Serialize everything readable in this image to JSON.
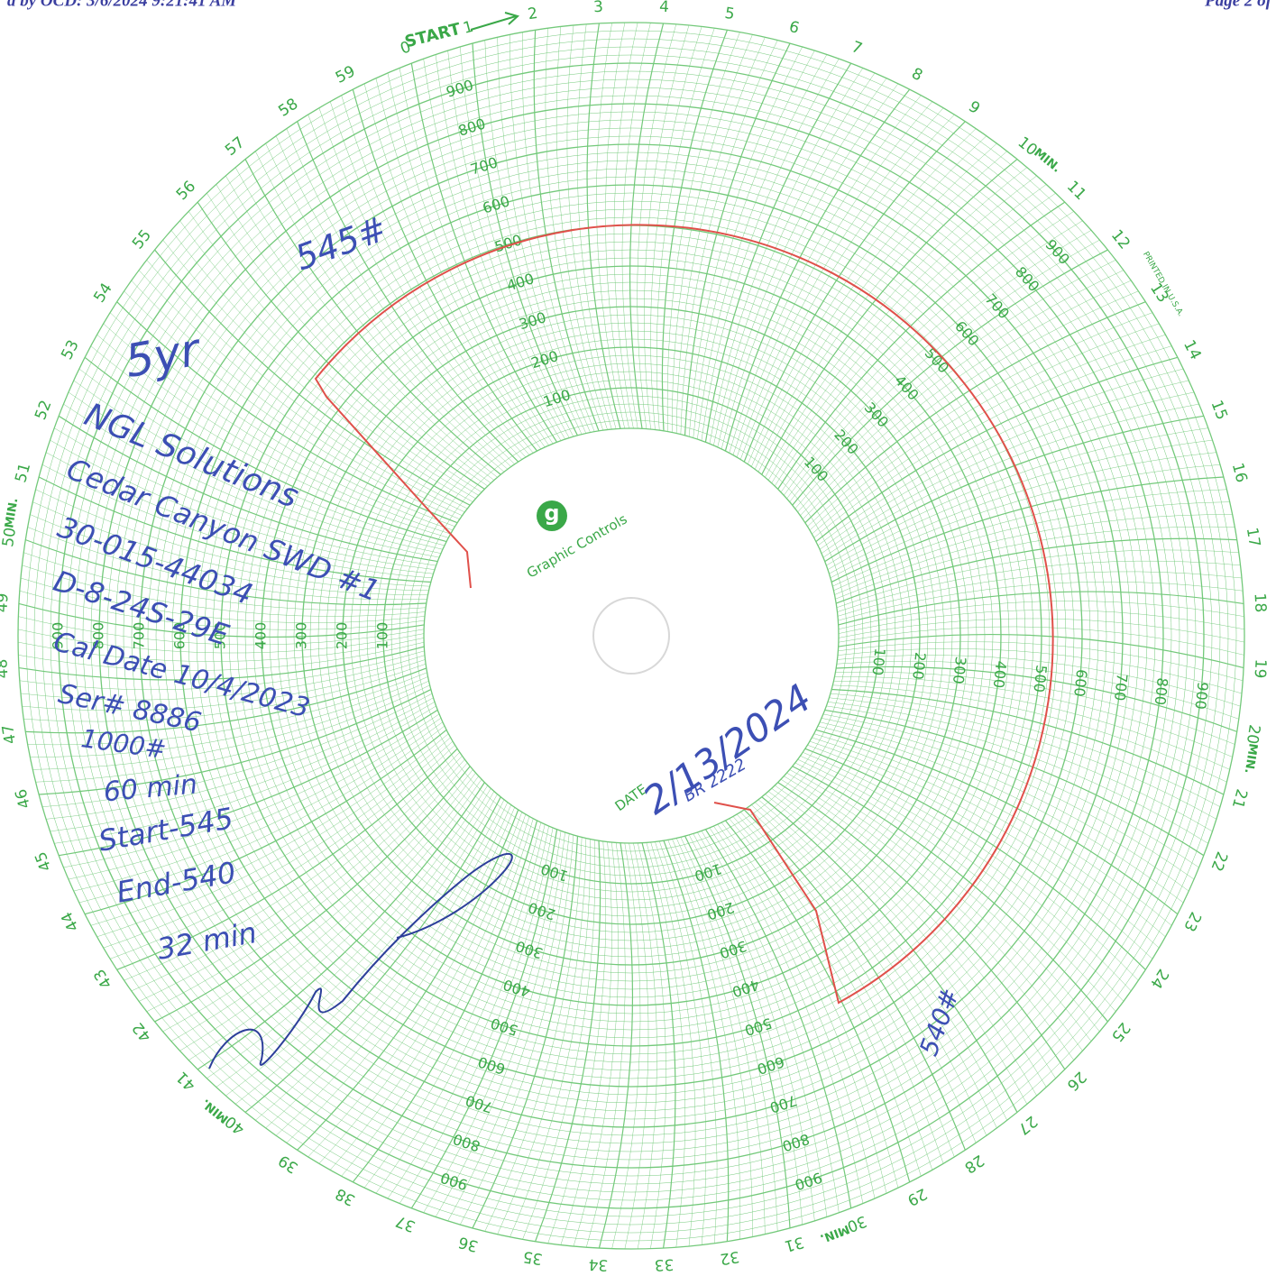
{
  "header": {
    "left": "d by OCD: 3/6/2024 9:21:41 AM",
    "right": "Page 2 of"
  },
  "dial": {
    "start": "START",
    "minutes": [
      0,
      1,
      2,
      3,
      4,
      5,
      6,
      7,
      8,
      9,
      10,
      11,
      12,
      13,
      14,
      15,
      16,
      17,
      18,
      19,
      20,
      21,
      22,
      23,
      24,
      25,
      26,
      27,
      28,
      29,
      30,
      31,
      32,
      33,
      34,
      35,
      36,
      37,
      38,
      39,
      40,
      41,
      42,
      43,
      44,
      45,
      46,
      47,
      48,
      49,
      50,
      51,
      52,
      53,
      54,
      55,
      56,
      57,
      58,
      59
    ],
    "min_unit": "MIN.",
    "pressure_labels": [
      100,
      200,
      300,
      400,
      500,
      600,
      700,
      800,
      900
    ],
    "date_label": "DATE"
  },
  "brand": {
    "logo": "g",
    "name": "Graphic Controls",
    "printed": "PRINTED IN U.S.A."
  },
  "notes": {
    "reading": "545#",
    "retention": "5yr",
    "company": "NGL Solutions",
    "well": "Cedar Canyon SWD #1",
    "api": "30-015-44034",
    "location": "D-8-24S-29E",
    "cal_date": "Cal Date 10/4/2023",
    "serial": "Ser# 8886",
    "range": "1000#",
    "duration": "60 min",
    "start": "Start-545",
    "end": "End-540",
    "elapsed": "32 min",
    "date": "2/13/2024",
    "recorder": "BR 2222",
    "end_reading": "540#"
  }
}
